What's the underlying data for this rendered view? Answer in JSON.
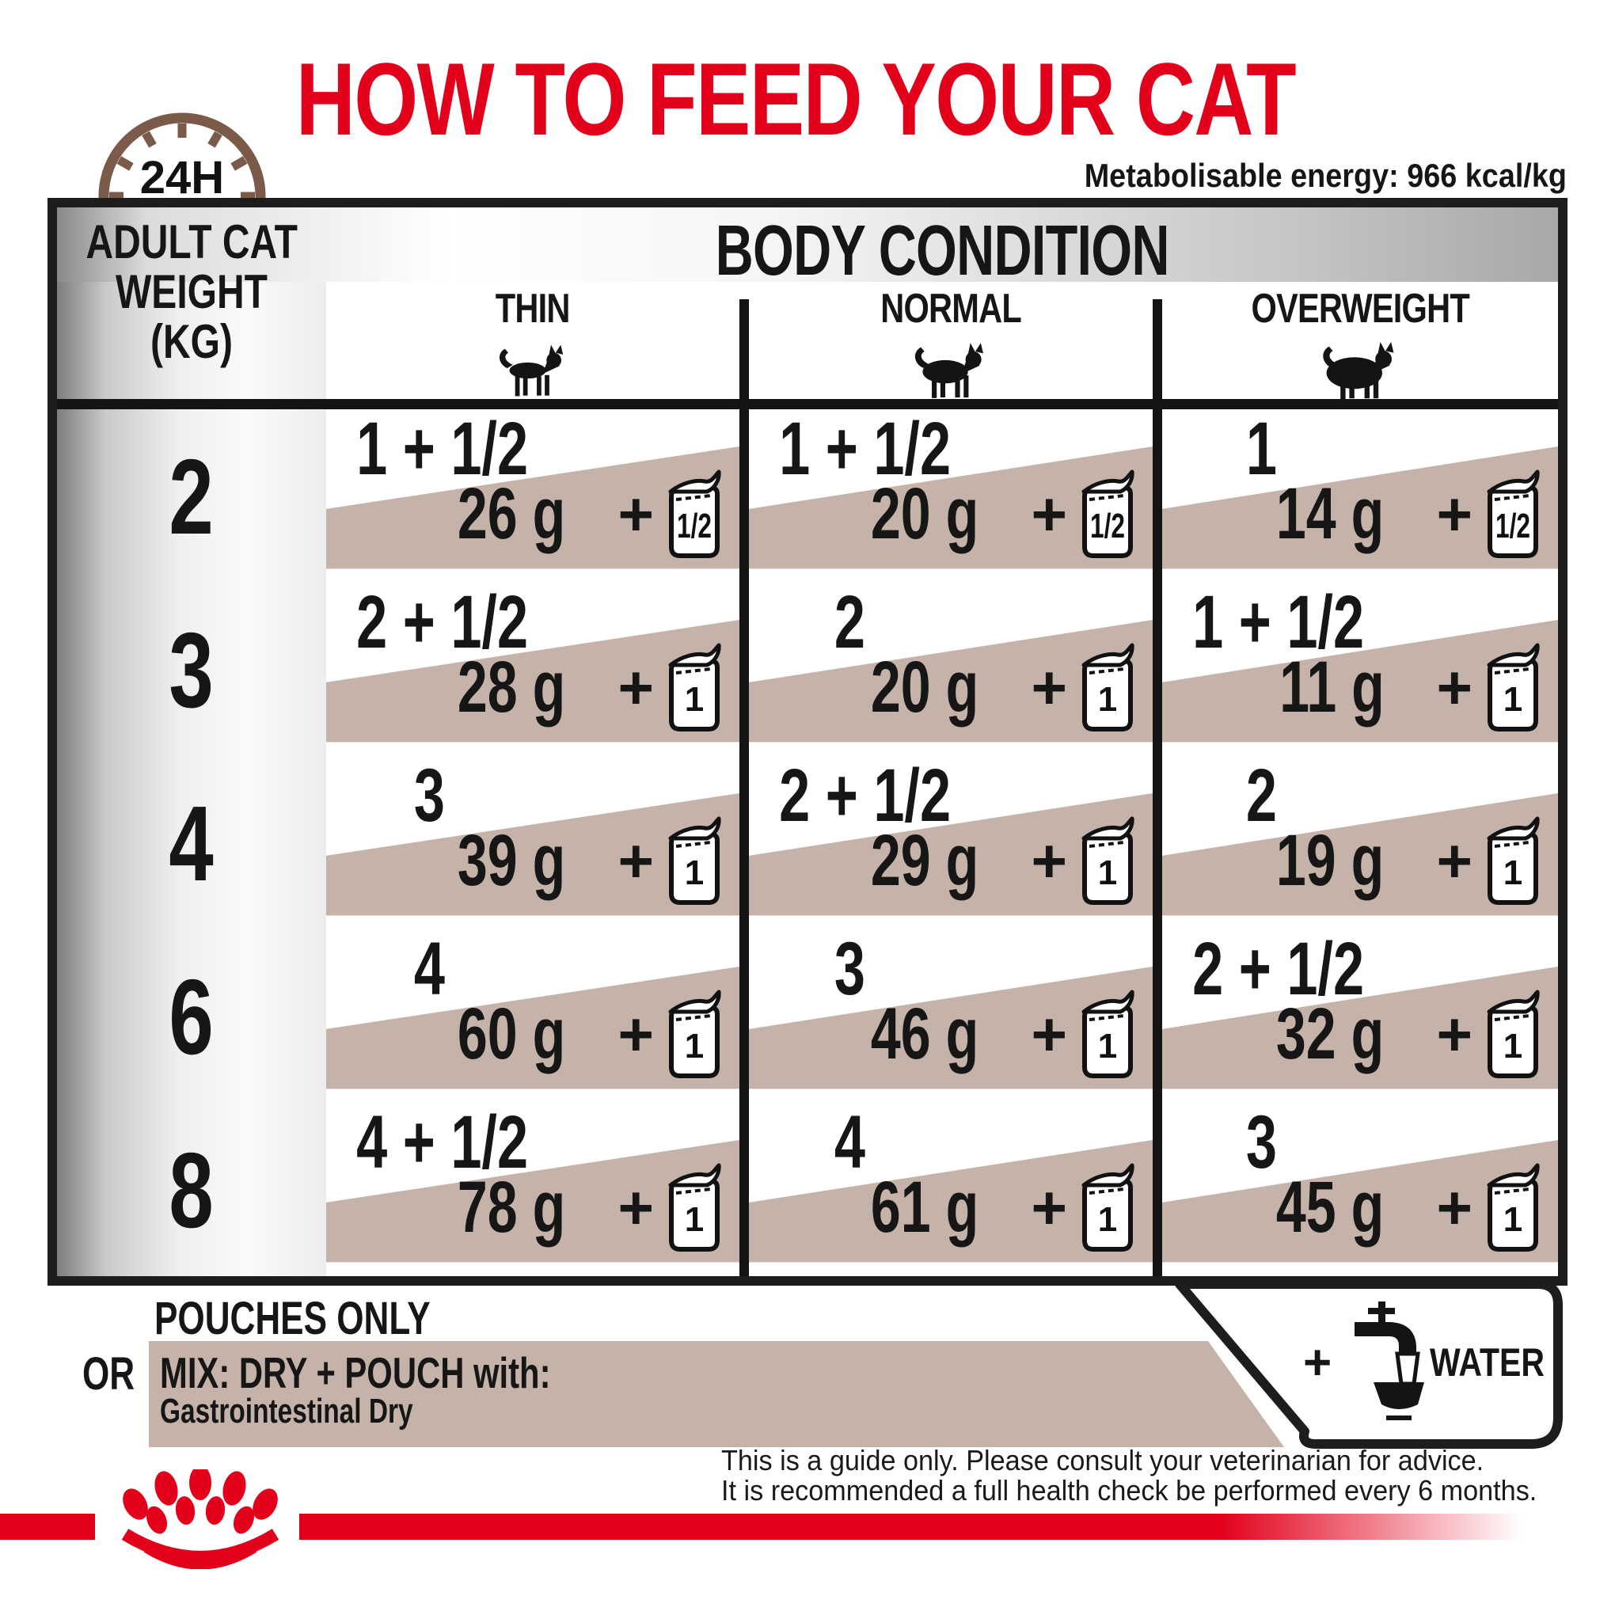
{
  "title": "HOW TO FEED YOUR CAT",
  "energy_note": "Metabolisable energy: 966 kcal/kg",
  "clock": {
    "label": "24H"
  },
  "table": {
    "weight_header_lines": [
      "ADULT CAT",
      "WEIGHT",
      "(KG)"
    ],
    "body_condition_header": "BODY CONDITION",
    "columns": [
      {
        "label": "THIN",
        "icon": "thin-cat-icon"
      },
      {
        "label": "NORMAL",
        "icon": "normal-cat-icon"
      },
      {
        "label": "OVERWEIGHT",
        "icon": "overweight-cat-icon"
      }
    ],
    "plus_sign": "+",
    "rows": [
      {
        "weight": "2",
        "cells": [
          {
            "pouches": "1 + 1/2",
            "grams": "26 g",
            "pouch_units": "1/2"
          },
          {
            "pouches": "1 + 1/2",
            "grams": "20 g",
            "pouch_units": "1/2"
          },
          {
            "pouches": "1",
            "grams": "14 g",
            "pouch_units": "1/2"
          }
        ]
      },
      {
        "weight": "3",
        "cells": [
          {
            "pouches": "2 + 1/2",
            "grams": "28 g",
            "pouch_units": "1"
          },
          {
            "pouches": "2",
            "grams": "20 g",
            "pouch_units": "1"
          },
          {
            "pouches": "1 + 1/2",
            "grams": "11 g",
            "pouch_units": "1"
          }
        ]
      },
      {
        "weight": "4",
        "cells": [
          {
            "pouches": "3",
            "grams": "39 g",
            "pouch_units": "1"
          },
          {
            "pouches": "2 + 1/2",
            "grams": "29 g",
            "pouch_units": "1"
          },
          {
            "pouches": "2",
            "grams": "19 g",
            "pouch_units": "1"
          }
        ]
      },
      {
        "weight": "6",
        "cells": [
          {
            "pouches": "4",
            "grams": "60 g",
            "pouch_units": "1"
          },
          {
            "pouches": "3",
            "grams": "46 g",
            "pouch_units": "1"
          },
          {
            "pouches": "2 + 1/2",
            "grams": "32 g",
            "pouch_units": "1"
          }
        ]
      },
      {
        "weight": "8",
        "cells": [
          {
            "pouches": "4 + 1/2",
            "grams": "78 g",
            "pouch_units": "1"
          },
          {
            "pouches": "4",
            "grams": "61 g",
            "pouch_units": "1"
          },
          {
            "pouches": "3",
            "grams": "45 g",
            "pouch_units": "1"
          }
        ]
      }
    ]
  },
  "feeding_options": {
    "option_pouches": "POUCHES ONLY",
    "or_label": "OR",
    "option_mix": "MIX: DRY + POUCH with:",
    "option_mix_product": "Gastrointestinal Dry",
    "water_plus": "+",
    "water_label": "WATER"
  },
  "disclaimer": [
    "This is a guide only. Please consult your veterinarian for advice.",
    "It is recommended a full health check be performed every 6 months."
  ],
  "colors": {
    "accent_red": "#e2001a",
    "band_tan": "#c5b2a9",
    "clock_brown": "#7b5a4a",
    "border_black": "#1d1d1b"
  }
}
